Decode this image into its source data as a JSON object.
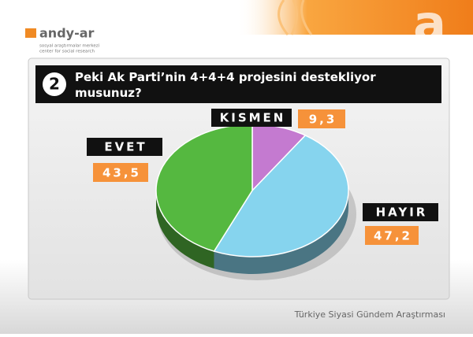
{
  "header": {
    "logo": "andy-ar",
    "tagline_1": "sosyal araştırmalar merkezi",
    "tagline_2": "center for social research"
  },
  "chart_data": {
    "type": "pie",
    "number": "2",
    "title": "Peki Ak Parti’nin 4+4+4 projesini destekliyor musunuz?",
    "categories": [
      "KISMEN",
      "HAYIR",
      "EVET"
    ],
    "values": [
      9.3,
      47.2,
      43.5
    ],
    "value_labels": [
      "9,3",
      "47,2",
      "43,5"
    ],
    "colors": [
      "#c47ad0",
      "#86d4ee",
      "#55b840"
    ]
  },
  "footer": "Türkiye Siyasi Gündem Araştırması"
}
